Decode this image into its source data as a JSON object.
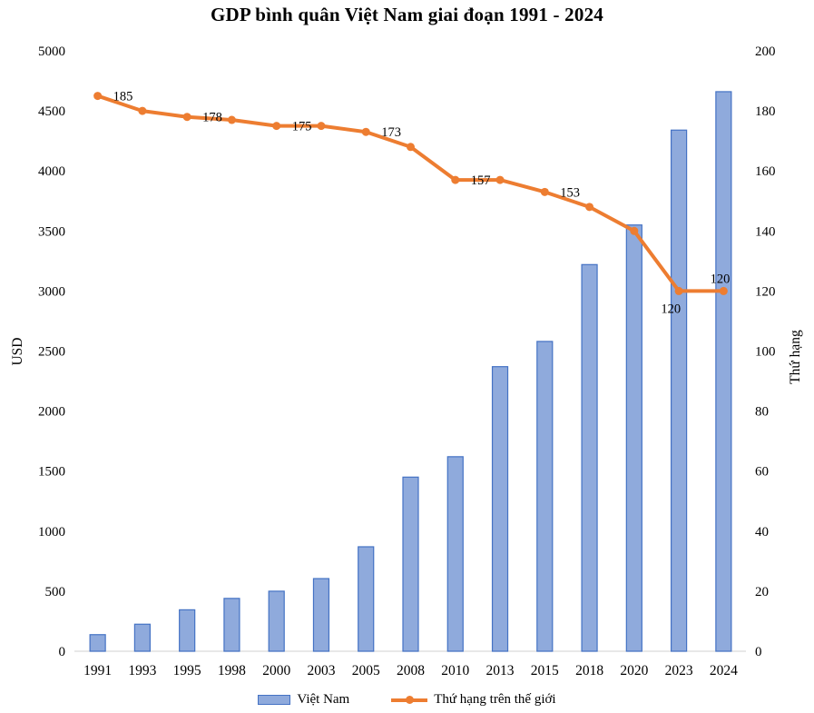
{
  "page": {
    "background": "#FFFFFF"
  },
  "chart_data": {
    "type": "bar",
    "combo": "bar + line, dual axis",
    "title": "GDP bình quân Việt Nam giai đoạn 1991 - 2024",
    "categories": [
      "1991",
      "1993",
      "1995",
      "1998",
      "2000",
      "2003",
      "2005",
      "2008",
      "2010",
      "2013",
      "2015",
      "2018",
      "2020",
      "2023",
      "2024"
    ],
    "series": [
      {
        "name": "Việt Nam",
        "type": "bar",
        "axis": "left",
        "color": "#8FAADC",
        "border_color": "#4472C4",
        "values": [
          138,
          225,
          345,
          440,
          500,
          605,
          870,
          1450,
          1620,
          2370,
          2580,
          3220,
          3550,
          4340,
          4660
        ]
      },
      {
        "name": "Thứ hạng trên thế giới",
        "type": "line",
        "axis": "right",
        "color": "#ED7D31",
        "values": [
          185,
          180,
          178,
          177,
          175,
          175,
          173,
          168,
          157,
          157,
          153,
          148,
          140,
          120,
          120
        ],
        "point_labels": [
          {
            "index": 0,
            "text": "185",
            "pos": "right"
          },
          {
            "index": 2,
            "text": "178",
            "pos": "right"
          },
          {
            "index": 4,
            "text": "175",
            "pos": "right"
          },
          {
            "index": 6,
            "text": "173",
            "pos": "right"
          },
          {
            "index": 8,
            "text": "157",
            "pos": "right"
          },
          {
            "index": 10,
            "text": "153",
            "pos": "right"
          },
          {
            "index": 13,
            "text": "120",
            "pos": "below-left"
          },
          {
            "index": 14,
            "text": "120",
            "pos": "above"
          }
        ]
      }
    ],
    "left_axis": {
      "label": "USD",
      "min": 0,
      "max": 5000,
      "step": 500,
      "ticks": [
        "0",
        "500",
        "1000",
        "1500",
        "2000",
        "2500",
        "3000",
        "3500",
        "4000",
        "4500",
        "5000"
      ]
    },
    "right_axis": {
      "label": "Thứ hạng",
      "min": 0,
      "max": 200,
      "step": 20,
      "ticks": [
        "0",
        "20",
        "40",
        "60",
        "80",
        "100",
        "120",
        "140",
        "160",
        "180",
        "200"
      ]
    },
    "grid": false,
    "legend_position": "bottom",
    "axis_line_color": "#D9D9D9",
    "text_color": "#000000"
  }
}
